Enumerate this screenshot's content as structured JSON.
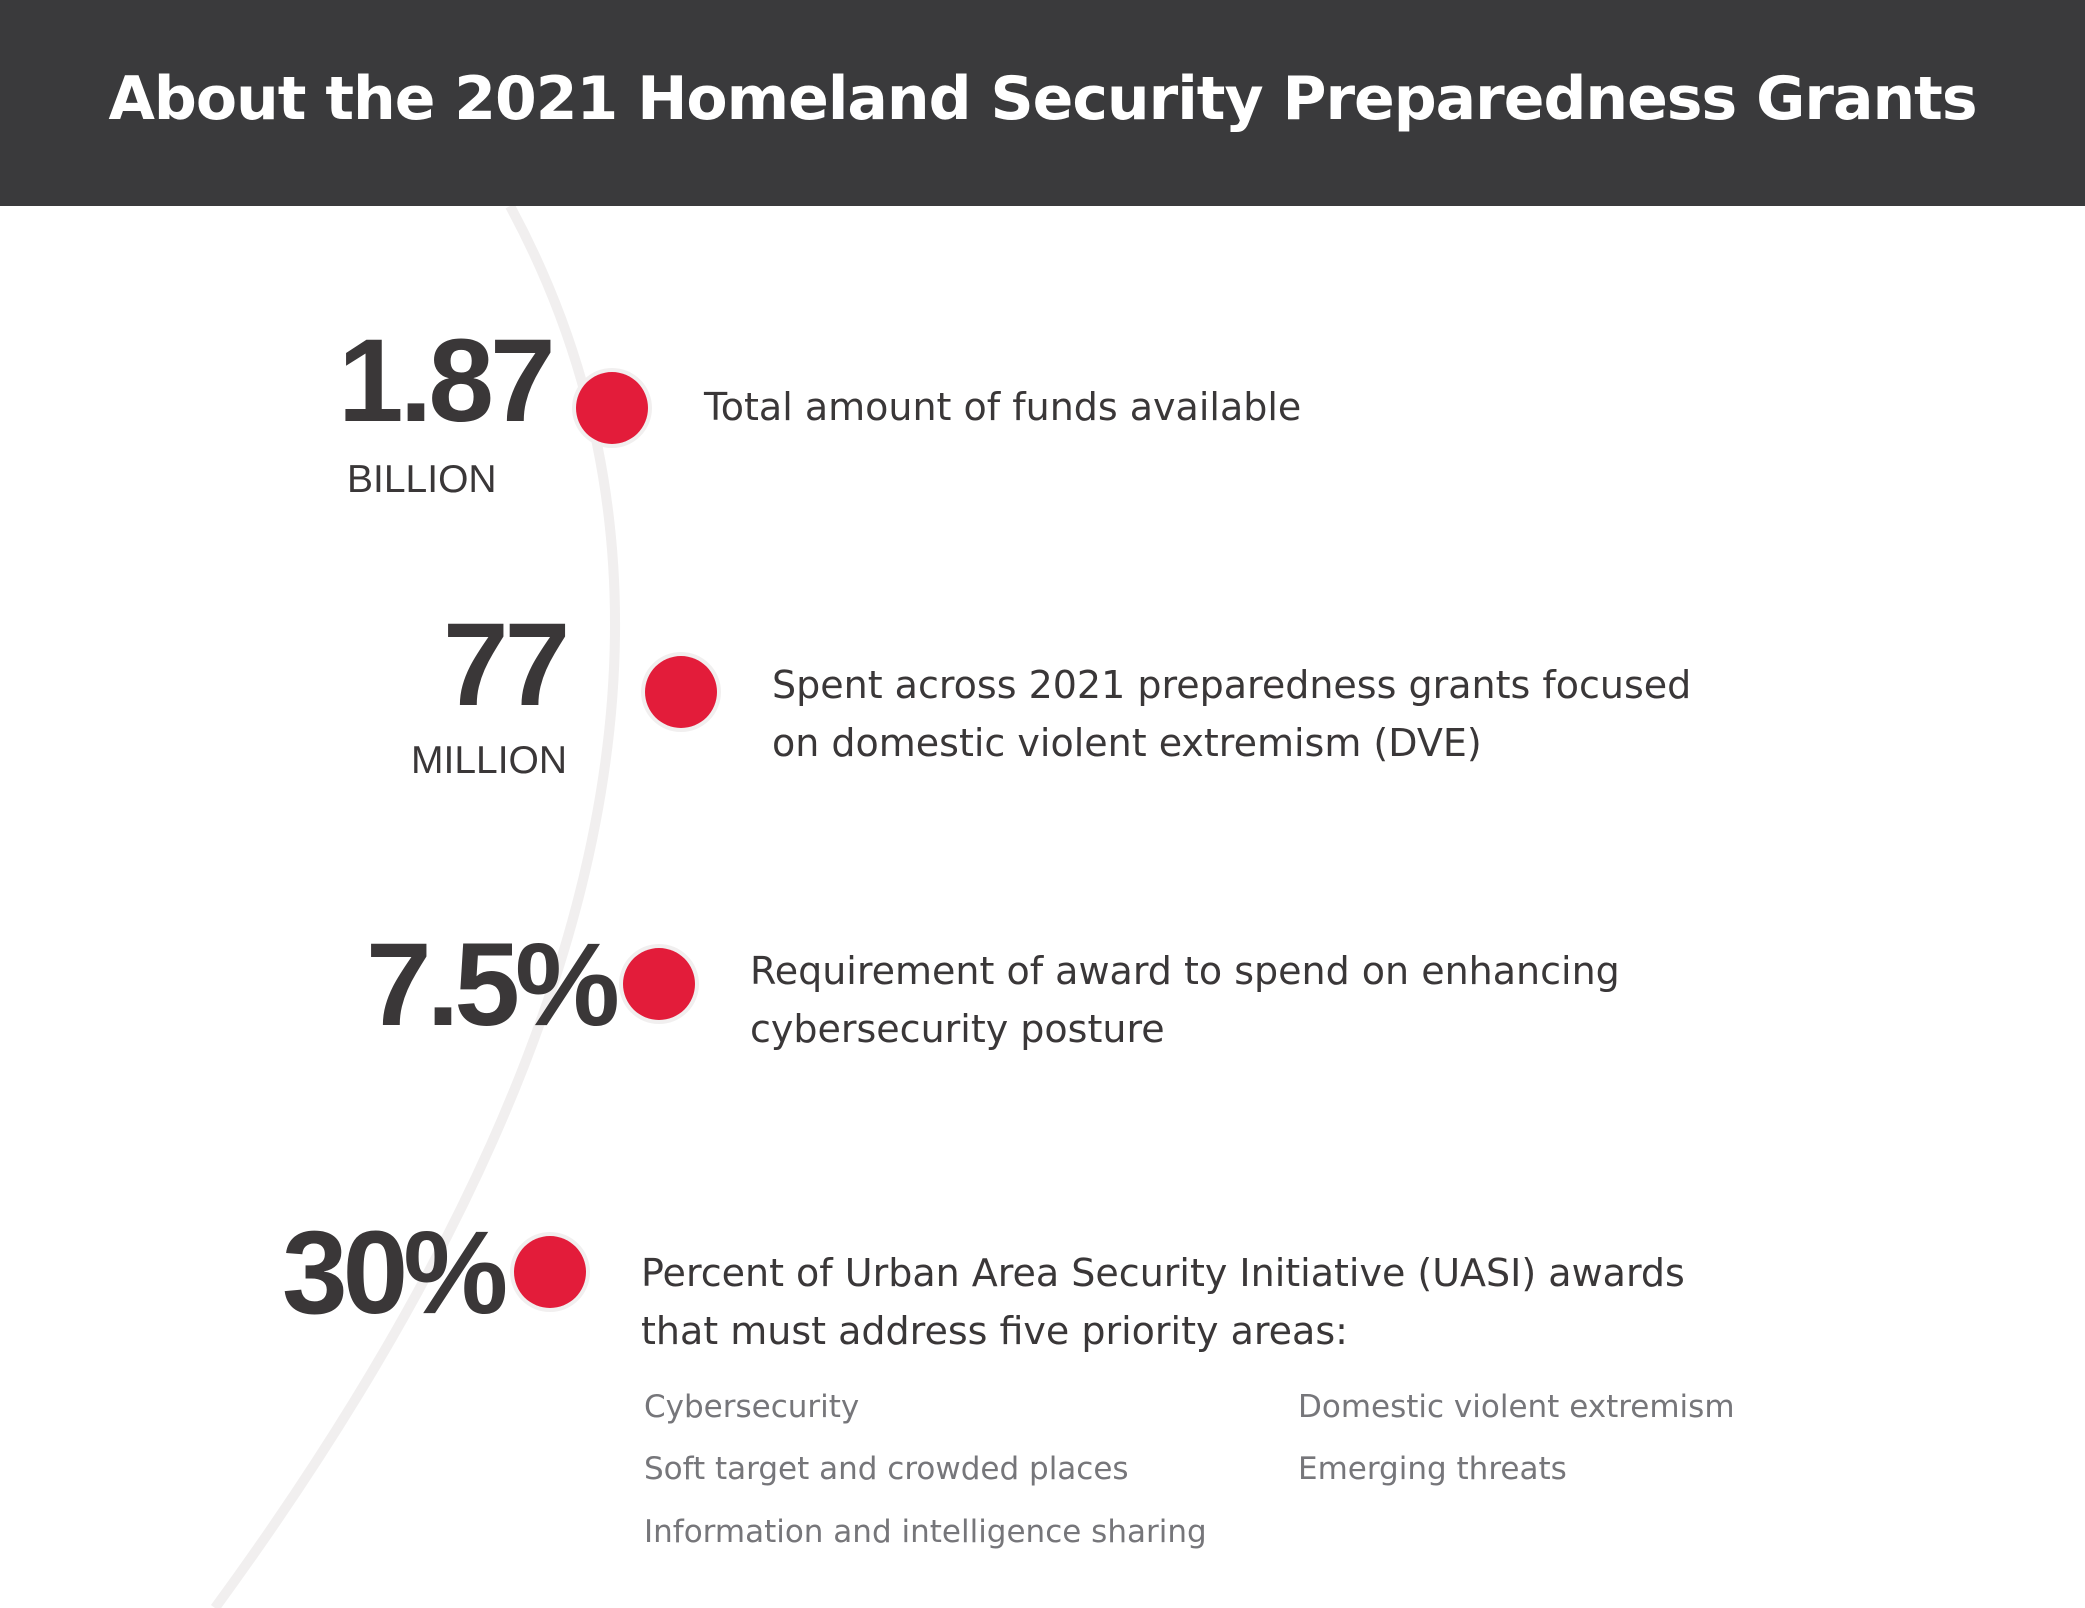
{
  "header": {
    "title": "About the 2021 Homeland Security Preparedness Grants"
  },
  "colors": {
    "header_bg": "#3a3a3c",
    "accent": "#e31c3a",
    "text_dark": "#3a3738",
    "text_muted": "#76767a",
    "arc": "#f1efef"
  },
  "stats": [
    {
      "value": "1.87",
      "unit": "BILLION",
      "description": [
        "Total amount of funds available"
      ]
    },
    {
      "value": "77",
      "unit": "MILLION",
      "description": [
        "Spent across 2021 preparedness grants focused",
        "on domestic violent extremism (DVE)"
      ]
    },
    {
      "value": "7.5%",
      "unit": "",
      "description": [
        "Requirement of award to spend on enhancing",
        "cybersecurity posture"
      ]
    },
    {
      "value": "30%",
      "unit": "",
      "description": [
        "Percent of Urban Area Security Initiative (UASI) awards",
        "that must address five priority areas:"
      ]
    }
  ],
  "priority_areas": [
    "Cybersecurity",
    "Soft target and crowded places",
    "Information and intelligence sharing",
    "Domestic violent extremism",
    "Emerging threats"
  ]
}
